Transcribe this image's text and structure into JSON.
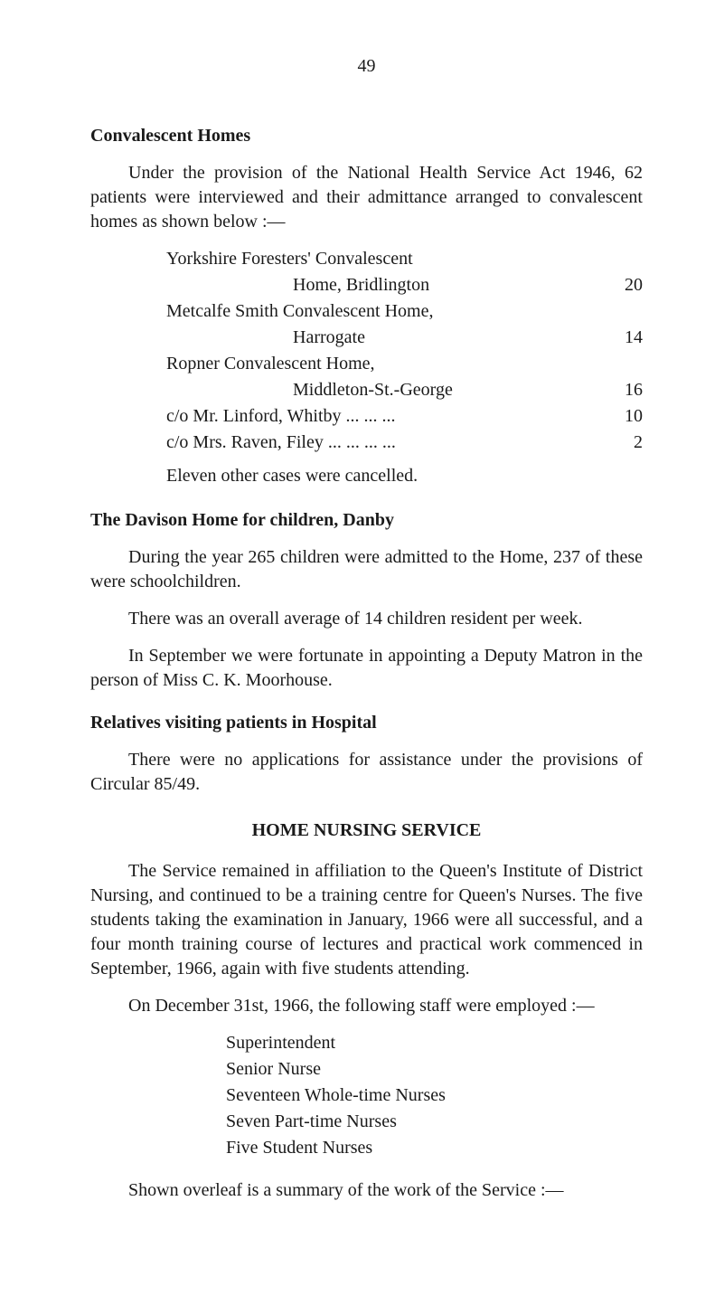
{
  "page_number": "49",
  "sections": {
    "convalescent": {
      "heading": "Convalescent Homes",
      "intro": "Under the provision of the National Health Service Act 1946, 62 patients were interviewed and their admittance arranged to convalescent homes as shown below :—",
      "items": [
        {
          "line1": "Yorkshire Foresters' Convalescent",
          "line2": "Home, Bridlington",
          "value": "20"
        },
        {
          "line1": "Metcalfe Smith Convalescent Home,",
          "line2": "Harrogate",
          "value": "14"
        },
        {
          "line1": "Ropner Convalescent Home,",
          "line2": "Middleton-St.-George",
          "value": "16"
        },
        {
          "line1": "c/o Mr. Linford, Whitby    ...   ...   ...",
          "value": "10"
        },
        {
          "line1": "c/o Mrs. Raven, Filey   ...   ...   ...   ...",
          "value": "2"
        }
      ],
      "closing": "Eleven other cases were cancelled."
    },
    "davison": {
      "heading": "The Davison Home for children, Danby",
      "p1": "During the year 265 children were admitted to the Home, 237 of these were schoolchildren.",
      "p2": "There was an overall average of 14 children resident per week.",
      "p3": "In September we were fortunate in appointing a Deputy Matron in the person of Miss C. K. Moorhouse."
    },
    "relatives": {
      "heading": "Relatives visiting patients in Hospital",
      "p1": "There were no applications for assistance under the provisions of Circular 85/49."
    },
    "nursing": {
      "heading": "HOME NURSING SERVICE",
      "p1": "The Service remained in affiliation to the Queen's Institute of District Nursing, and continued to be a training centre for Queen's Nurses. The five students taking the examination in January, 1966 were all successful, and a four month training course of lectures and practical work commenced in September, 1966, again with five students attending.",
      "p2": "On December 31st, 1966, the following staff were employed :—",
      "staff": [
        "Superintendent",
        "Senior Nurse",
        "Seventeen Whole-time Nurses",
        "Seven Part-time Nurses",
        "Five Student Nurses"
      ],
      "p3": "Shown overleaf is a summary of the work of the Service :—"
    }
  }
}
